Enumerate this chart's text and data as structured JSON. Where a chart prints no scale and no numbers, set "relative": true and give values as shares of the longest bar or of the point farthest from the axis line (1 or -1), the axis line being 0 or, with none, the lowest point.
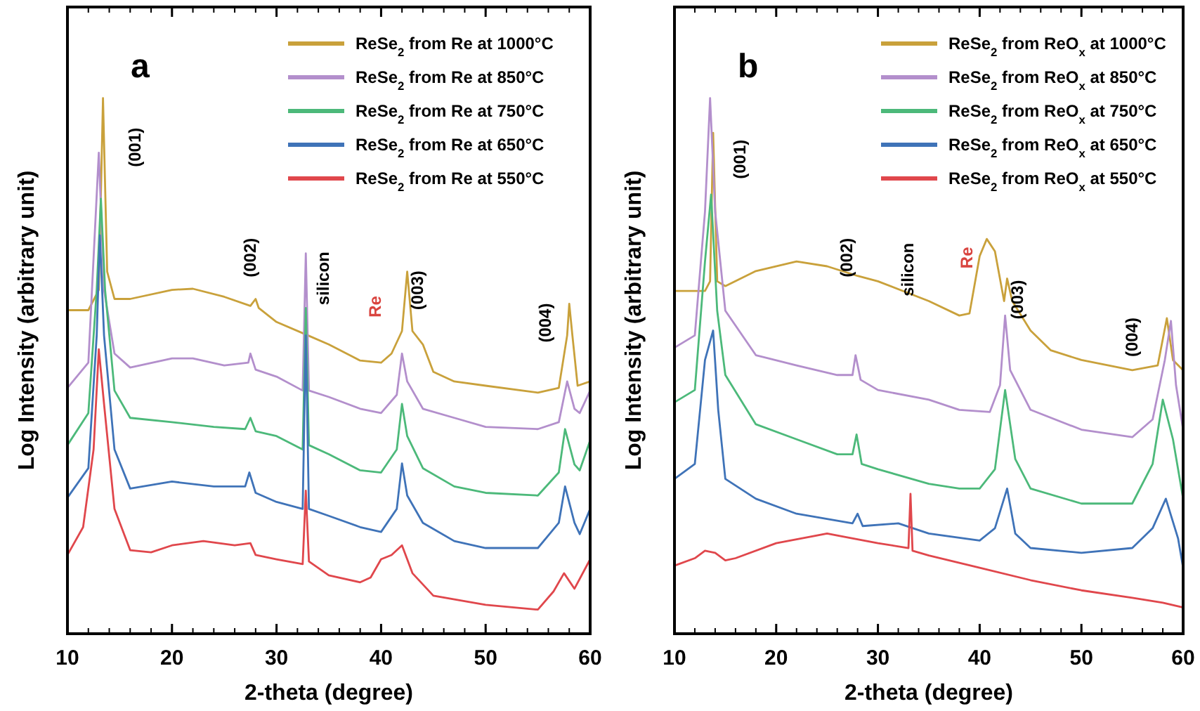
{
  "chart_data": [
    {
      "type": "line",
      "title": "a",
      "xlabel": "2-theta (degree)",
      "ylabel": "Log Intensity (arbitrary unit)",
      "relative": true,
      "xlim": [
        10,
        60
      ],
      "xticks": [
        10,
        20,
        30,
        40,
        50,
        60
      ],
      "grid": false,
      "legend": "top right",
      "marker": "none",
      "line_style": "solid",
      "annotations": [
        "(001)",
        "(002)",
        "silicon",
        "Re",
        "(003)",
        "(004)"
      ],
      "series": [
        {
          "name": "ReSe$_{2}$ from Re at 1000°C",
          "color": "#c9a13b",
          "x": [
            10,
            12,
            13,
            13.4,
            13.8,
            14.5,
            16,
            20,
            22,
            25,
            27.5,
            28,
            28.3,
            30,
            33,
            35,
            38,
            40,
            41,
            42,
            42.5,
            43,
            44,
            45,
            47,
            50,
            55,
            57,
            57.8,
            58,
            58.3,
            58.8,
            60
          ],
          "values": [
            0.604,
            0.604,
            0.642,
            1.0,
            0.676,
            0.625,
            0.625,
            0.642,
            0.644,
            0.629,
            0.612,
            0.625,
            0.608,
            0.582,
            0.557,
            0.54,
            0.51,
            0.506,
            0.523,
            0.565,
            0.676,
            0.565,
            0.54,
            0.489,
            0.471,
            0.463,
            0.45,
            0.459,
            0.557,
            0.616,
            0.557,
            0.463,
            0.471
          ]
        },
        {
          "name": "ReSe$_{2}$ from Re at 850°C",
          "color": "#b38fcc",
          "x": [
            10,
            12,
            13,
            13.5,
            14.5,
            16,
            20,
            22,
            25,
            27.3,
            27.5,
            28,
            30,
            32.5,
            32.8,
            33.1,
            35,
            38,
            40,
            41.5,
            42,
            42.5,
            44,
            47,
            50,
            55,
            57,
            57.8,
            58.5,
            59,
            60
          ],
          "values": [
            0.459,
            0.506,
            0.898,
            0.642,
            0.523,
            0.497,
            0.514,
            0.514,
            0.501,
            0.506,
            0.523,
            0.493,
            0.48,
            0.454,
            0.71,
            0.454,
            0.442,
            0.42,
            0.412,
            0.446,
            0.523,
            0.471,
            0.42,
            0.403,
            0.386,
            0.382,
            0.395,
            0.471,
            0.42,
            0.412,
            0.454
          ]
        },
        {
          "name": "ReSe$_{2}$ from Re at 750°C",
          "color": "#4cb97a",
          "x": [
            10,
            12,
            12.8,
            13.2,
            13.6,
            14.5,
            16,
            20,
            24,
            27,
            27.5,
            28,
            30,
            32.5,
            32.8,
            33.1,
            35,
            38,
            40,
            41.5,
            42,
            42.5,
            44,
            47,
            50,
            55,
            57,
            57.6,
            58.5,
            59,
            60
          ],
          "values": [
            0.352,
            0.412,
            0.642,
            0.812,
            0.642,
            0.454,
            0.403,
            0.395,
            0.386,
            0.382,
            0.403,
            0.378,
            0.369,
            0.344,
            0.608,
            0.352,
            0.335,
            0.305,
            0.301,
            0.344,
            0.429,
            0.369,
            0.309,
            0.275,
            0.263,
            0.258,
            0.301,
            0.382,
            0.316,
            0.305,
            0.361
          ]
        },
        {
          "name": "ReSe$_{2}$ from Re at 650°C",
          "color": "#3f73b8",
          "x": [
            10,
            12,
            12.8,
            13.1,
            13.5,
            14.5,
            16,
            20,
            24,
            27,
            27.4,
            28,
            30,
            32.5,
            32.8,
            33.1,
            35,
            38,
            40,
            41.5,
            42,
            42.5,
            44,
            47,
            50,
            55,
            57,
            57.6,
            58.5,
            59,
            60
          ],
          "values": [
            0.254,
            0.309,
            0.557,
            0.744,
            0.557,
            0.344,
            0.271,
            0.284,
            0.275,
            0.275,
            0.301,
            0.263,
            0.246,
            0.233,
            0.557,
            0.233,
            0.22,
            0.199,
            0.19,
            0.233,
            0.318,
            0.258,
            0.207,
            0.173,
            0.16,
            0.16,
            0.207,
            0.275,
            0.207,
            0.186,
            0.233
          ]
        },
        {
          "name": "ReSe$_{2}$ from Re at 550°C",
          "color": "#e0474c",
          "x": [
            10,
            11.5,
            12.5,
            13,
            13.5,
            14.5,
            16,
            18,
            20,
            23,
            26,
            27.5,
            28,
            30,
            32.5,
            32.8,
            33.1,
            35,
            38,
            39,
            40,
            41,
            42,
            43,
            45,
            50,
            55,
            56.5,
            57.5,
            58.5,
            60
          ],
          "values": [
            0.147,
            0.199,
            0.344,
            0.531,
            0.429,
            0.233,
            0.156,
            0.152,
            0.165,
            0.173,
            0.165,
            0.169,
            0.147,
            0.139,
            0.13,
            0.267,
            0.135,
            0.109,
            0.096,
            0.105,
            0.139,
            0.147,
            0.165,
            0.113,
            0.071,
            0.054,
            0.045,
            0.079,
            0.113,
            0.084,
            0.139
          ]
        }
      ]
    },
    {
      "type": "line",
      "title": "b",
      "xlabel": "2-theta (degree)",
      "ylabel": "Log Intensity (arbitrary unit)",
      "relative": true,
      "xlim": [
        10,
        60
      ],
      "xticks": [
        10,
        20,
        30,
        40,
        50,
        60
      ],
      "grid": false,
      "legend": "top right",
      "marker": "none",
      "line_style": "solid",
      "annotations": [
        "(001)",
        "(002)",
        "silicon",
        "Re",
        "(003)",
        "(004)"
      ],
      "series": [
        {
          "name": "ReSe$_{2}$ from ReO$_{x}$ at 1000°C",
          "color": "#c9a13b",
          "x": [
            10,
            13,
            13.5,
            13.8,
            14.2,
            15,
            18,
            22,
            25,
            28,
            30,
            35,
            38,
            39,
            40,
            40.7,
            41.5,
            42.4,
            42.7,
            43.2,
            45,
            47,
            50,
            55,
            57.5,
            58.4,
            59,
            60
          ],
          "values": [
            0.64,
            0.64,
            0.658,
            0.935,
            0.658,
            0.649,
            0.677,
            0.695,
            0.686,
            0.668,
            0.658,
            0.621,
            0.594,
            0.598,
            0.705,
            0.737,
            0.714,
            0.621,
            0.663,
            0.621,
            0.566,
            0.529,
            0.511,
            0.492,
            0.501,
            0.589,
            0.511,
            0.492
          ]
        },
        {
          "name": "ReSe$_{2}$ from ReO$_{x}$ at 850°C",
          "color": "#b38fcc",
          "x": [
            10,
            12,
            13,
            13.5,
            14,
            15,
            18,
            22,
            26,
            27.5,
            27.8,
            28.3,
            30,
            35,
            38,
            41,
            42,
            42.5,
            43,
            45,
            50,
            55,
            57,
            58.2,
            58.8,
            59.3,
            60
          ],
          "values": [
            0.534,
            0.557,
            0.788,
            1.0,
            0.788,
            0.603,
            0.52,
            0.501,
            0.483,
            0.483,
            0.52,
            0.474,
            0.455,
            0.437,
            0.418,
            0.414,
            0.464,
            0.594,
            0.492,
            0.418,
            0.381,
            0.367,
            0.4,
            0.511,
            0.584,
            0.464,
            0.381
          ]
        },
        {
          "name": "ReSe$_{2}$ from ReO$_{x}$ at 750°C",
          "color": "#4cb97a",
          "x": [
            10,
            12,
            13,
            13.6,
            14.2,
            15,
            18,
            22,
            26,
            27.5,
            27.9,
            28.4,
            30,
            35,
            38,
            40,
            41.5,
            42.5,
            43.5,
            45,
            50,
            55,
            57,
            58,
            59,
            60
          ],
          "values": [
            0.432,
            0.455,
            0.695,
            0.82,
            0.603,
            0.483,
            0.391,
            0.363,
            0.335,
            0.335,
            0.372,
            0.317,
            0.307,
            0.28,
            0.271,
            0.271,
            0.307,
            0.455,
            0.326,
            0.271,
            0.243,
            0.243,
            0.317,
            0.437,
            0.363,
            0.252
          ]
        },
        {
          "name": "ReSe$_{2}$ from ReO$_{x}$ at 650°C",
          "color": "#3f73b8",
          "x": [
            10,
            12,
            13,
            13.8,
            14.3,
            15,
            18,
            22,
            27.5,
            28,
            28.5,
            32,
            35,
            40,
            41.5,
            42.7,
            43.5,
            45,
            50,
            55,
            57,
            58.3,
            59.5,
            60
          ],
          "values": [
            0.289,
            0.317,
            0.511,
            0.566,
            0.418,
            0.289,
            0.252,
            0.224,
            0.206,
            0.224,
            0.201,
            0.206,
            0.187,
            0.174,
            0.197,
            0.271,
            0.187,
            0.16,
            0.151,
            0.16,
            0.197,
            0.252,
            0.178,
            0.123
          ]
        },
        {
          "name": "ReSe$_{2}$ from ReO$_{x}$ at 550°C",
          "color": "#e0474c",
          "x": [
            10,
            12,
            13,
            14,
            15,
            16,
            20,
            25,
            30,
            33,
            33.2,
            33.4,
            35,
            40,
            45,
            50,
            55,
            58,
            60
          ],
          "values": [
            0.127,
            0.141,
            0.155,
            0.151,
            0.137,
            0.141,
            0.169,
            0.187,
            0.169,
            0.16,
            0.261,
            0.155,
            0.146,
            0.123,
            0.1,
            0.081,
            0.067,
            0.058,
            0.049
          ]
        }
      ]
    }
  ]
}
